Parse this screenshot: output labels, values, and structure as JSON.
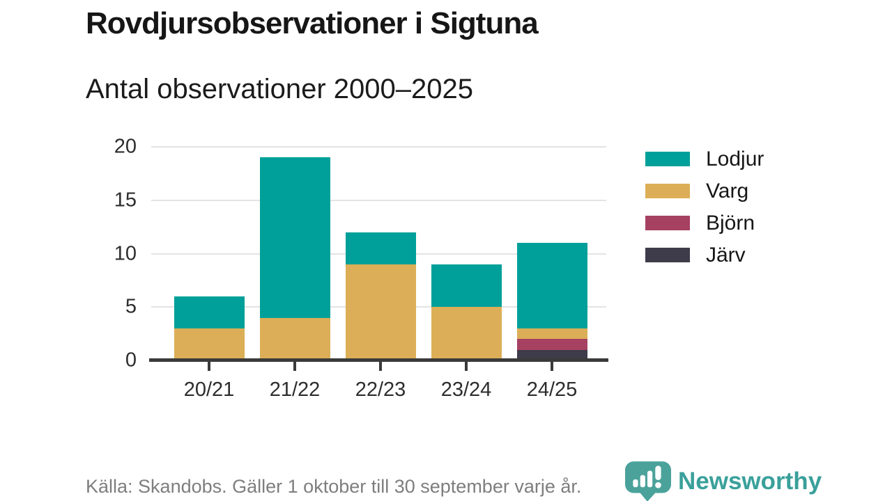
{
  "title": "Rovdjursobservationer i Sigtuna",
  "subtitle": "Antal observationer 2000–2025",
  "source_note": "Källa: Skandobs. Gäller 1 oktober till 30 september varje år.",
  "brand": {
    "name": "Newsworthy",
    "wordmark_color": "#3aa09a",
    "icon_color": "#4ba29b",
    "icon": "bar-chart-speech-bubble-icon"
  },
  "chart_data": {
    "type": "bar",
    "stacked": true,
    "title": "Rovdjursobservationer i Sigtuna",
    "subtitle": "Antal observationer 2000–2025",
    "categories": [
      "20/21",
      "21/22",
      "22/23",
      "23/24",
      "24/25"
    ],
    "series": [
      {
        "name": "Lodjur",
        "color": "#00a09a",
        "values": [
          3,
          15,
          3,
          4,
          8
        ]
      },
      {
        "name": "Varg",
        "color": "#dcae57",
        "values": [
          3,
          4,
          9,
          5,
          1
        ]
      },
      {
        "name": "Björn",
        "color": "#a64161",
        "values": [
          0,
          0,
          0,
          0,
          1
        ]
      },
      {
        "name": "Järv",
        "color": "#3e3b4a",
        "values": [
          0,
          0,
          0,
          0,
          1
        ]
      }
    ],
    "stack_order_bottom_to_top": [
      "Järv",
      "Björn",
      "Varg",
      "Lodjur"
    ],
    "totals": [
      6,
      19,
      12,
      9,
      11
    ],
    "xlabel": "",
    "ylabel": "",
    "ylim": [
      0,
      20
    ],
    "yticks": [
      0,
      5,
      10,
      15,
      20
    ],
    "grid": true,
    "legend_position": "right",
    "colors": {
      "grid": "#e3e3e3",
      "axis": "#3a3a3a",
      "tick_label": "#2d2d2d",
      "background": "#ffffff"
    }
  }
}
